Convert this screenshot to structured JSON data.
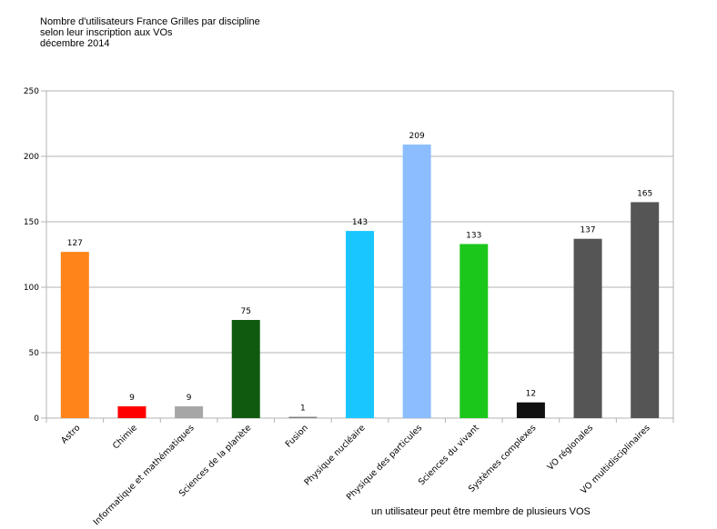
{
  "chart_data": {
    "type": "bar",
    "title": "Nombre d'utilisateurs France Grilles par discipline",
    "subtitle_lines": [
      "selon leur inscription aux VOs",
      "décembre 2014"
    ],
    "xlabel": "",
    "ylabel": "",
    "ylim": [
      0,
      250
    ],
    "yticks": [
      0,
      50,
      100,
      150,
      200,
      250
    ],
    "grid": true,
    "categories": [
      "Astro",
      "Chimie",
      "Informatique et mathématiques",
      "Sciences de la planète",
      "Fusion",
      "Physique nucléaire",
      "Physique des particules",
      "Sciences du vivant",
      "Systèmes complexes",
      "VO régionales",
      "VO multidisciplinaires"
    ],
    "values": [
      127,
      9,
      9,
      75,
      1,
      143,
      209,
      133,
      12,
      137,
      165
    ],
    "colors": [
      "#ff8419",
      "#ff0000",
      "#a6a6a6",
      "#0f5a0f",
      "#808080",
      "#1ac6ff",
      "#8cbeff",
      "#1bc71b",
      "#111111",
      "#555555",
      "#555555"
    ],
    "annotation": "un utilisateur peut être membre de plusieurs VOS"
  }
}
